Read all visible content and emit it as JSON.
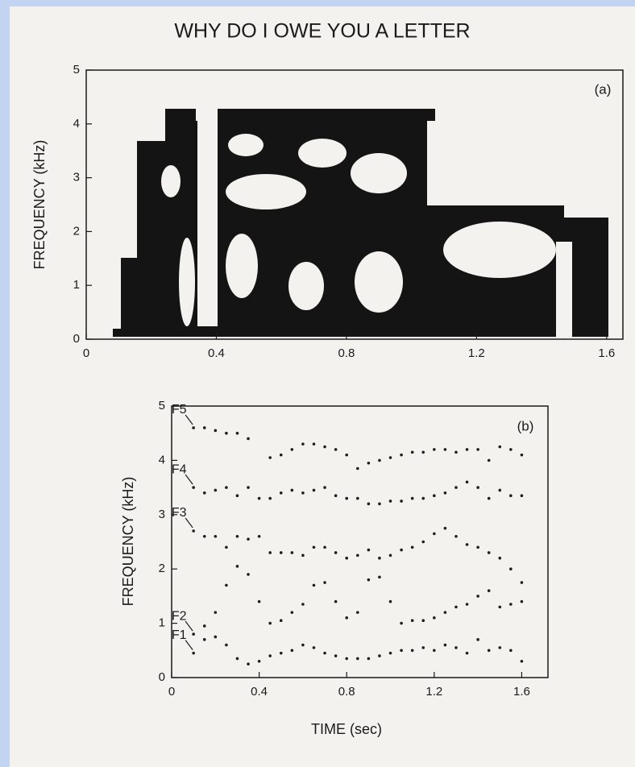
{
  "chart_data": [
    {
      "type": "spectrogram",
      "title": "WHY DO I OWE YOU A LETTER",
      "ylabel": "FREQUENCY (kHz)",
      "annotation": "(a)",
      "xlim": [
        0,
        1.65
      ],
      "ylim": [
        0,
        5
      ],
      "xticks": [
        0,
        0.4,
        0.8,
        1.2,
        1.6
      ],
      "yticks": [
        0,
        1,
        2,
        3,
        4,
        5
      ]
    },
    {
      "type": "scatter",
      "xlabel": "TIME (sec)",
      "ylabel": "FREQUENCY (kHz)",
      "annotation": "(b)",
      "color": "#1e1e1e",
      "xlim": [
        0,
        1.72
      ],
      "ylim": [
        0,
        5
      ],
      "xticks": [
        0,
        0.4,
        0.8,
        1.2,
        1.6
      ],
      "yticks": [
        0,
        1,
        2,
        3,
        4,
        5
      ],
      "x": [
        0.1,
        0.15,
        0.2,
        0.25,
        0.3,
        0.35,
        0.4,
        0.45,
        0.5,
        0.55,
        0.6,
        0.65,
        0.7,
        0.75,
        0.8,
        0.85,
        0.9,
        0.95,
        1.0,
        1.05,
        1.1,
        1.15,
        1.2,
        1.25,
        1.3,
        1.35,
        1.4,
        1.45,
        1.5,
        1.55,
        1.6
      ],
      "series": [
        {
          "name": "F5",
          "values": [
            4.6,
            4.6,
            4.55,
            4.5,
            4.5,
            4.4,
            null,
            4.05,
            4.1,
            4.2,
            4.3,
            4.3,
            4.25,
            4.2,
            4.1,
            3.85,
            3.95,
            4.0,
            4.05,
            4.1,
            4.15,
            4.15,
            4.2,
            4.2,
            4.15,
            4.2,
            4.2,
            4.0,
            4.25,
            4.2,
            4.1
          ]
        },
        {
          "name": "F4",
          "values": [
            3.5,
            3.4,
            3.45,
            3.5,
            3.35,
            3.5,
            3.3,
            3.3,
            3.4,
            3.45,
            3.4,
            3.45,
            3.5,
            3.35,
            3.3,
            3.3,
            3.2,
            3.2,
            3.25,
            3.25,
            3.3,
            3.3,
            3.35,
            3.4,
            3.5,
            3.6,
            3.5,
            3.3,
            3.45,
            3.35,
            3.35
          ]
        },
        {
          "name": "F3",
          "values": [
            2.7,
            2.6,
            2.6,
            2.4,
            2.6,
            2.55,
            2.6,
            2.3,
            2.3,
            2.3,
            2.25,
            2.4,
            2.4,
            2.3,
            2.2,
            2.25,
            2.35,
            2.2,
            2.25,
            2.35,
            2.4,
            2.5,
            2.65,
            2.75,
            2.6,
            2.45,
            2.4,
            2.3,
            2.2,
            2.0,
            1.75
          ]
        },
        {
          "name": "F2",
          "values": [
            0.8,
            0.95,
            1.2,
            1.7,
            2.05,
            1.9,
            1.4,
            1.0,
            1.05,
            1.2,
            1.35,
            1.7,
            1.75,
            1.4,
            1.1,
            1.2,
            1.8,
            1.85,
            1.4,
            1.0,
            1.05,
            1.05,
            1.1,
            1.2,
            1.3,
            1.35,
            1.5,
            1.6,
            1.3,
            1.35,
            1.4
          ]
        },
        {
          "name": "F1",
          "values": [
            0.45,
            0.7,
            0.75,
            0.6,
            0.35,
            0.25,
            0.3,
            0.4,
            0.45,
            0.5,
            0.6,
            0.55,
            0.45,
            0.4,
            0.35,
            0.35,
            0.35,
            0.4,
            0.45,
            0.5,
            0.5,
            0.55,
            0.5,
            0.6,
            0.55,
            0.45,
            0.7,
            0.5,
            0.55,
            0.5,
            0.3
          ]
        }
      ]
    }
  ]
}
